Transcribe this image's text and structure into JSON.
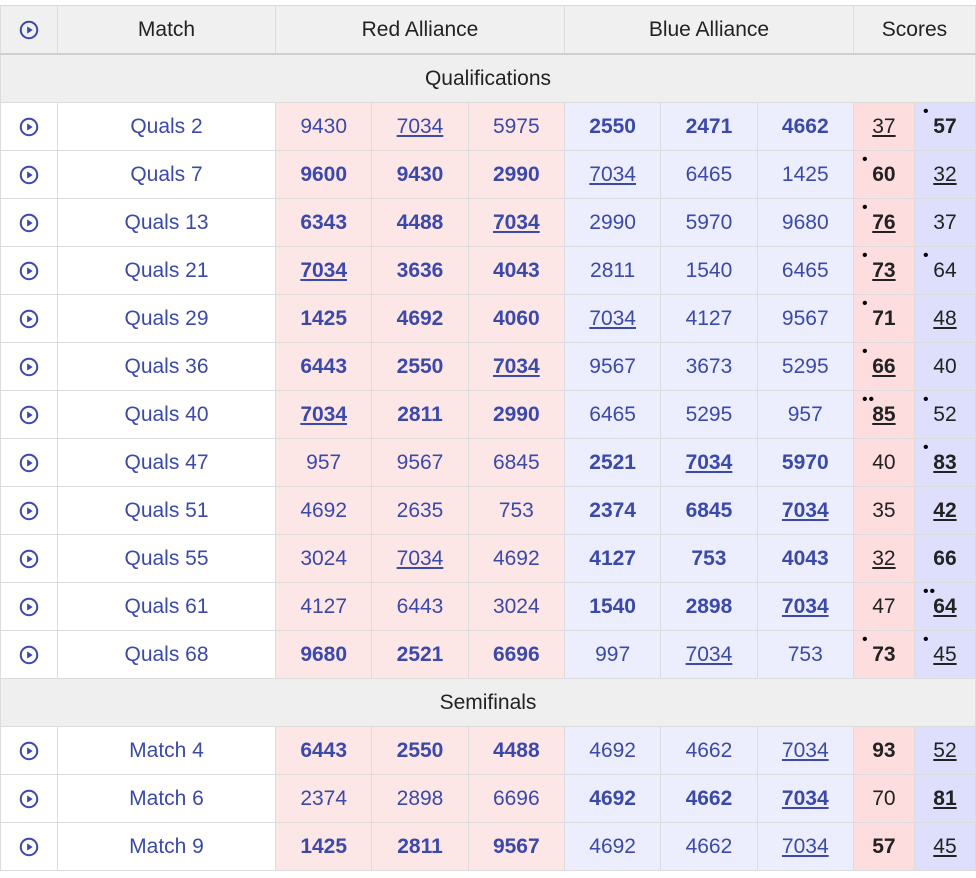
{
  "header": {
    "play_icon": "play-circle-icon",
    "match": "Match",
    "red": "Red Alliance",
    "blue": "Blue Alliance",
    "scores": "Scores"
  },
  "colors": {
    "accent": "#3b49a8",
    "red_bg": "#fde6e6",
    "blue_bg": "#ecedfd",
    "red_score_bg": "#fddddd",
    "blue_score_bg": "#dddffd"
  },
  "sections": [
    {
      "title": "Qualifications",
      "matches": [
        {
          "name": "Quals 2",
          "red": [
            "9430",
            "7034",
            "5975"
          ],
          "blue": [
            "2550",
            "2471",
            "4662"
          ],
          "red_score": "37",
          "blue_score": "57",
          "winner": "blue",
          "red_dots": "",
          "blue_dots": "•",
          "red_score_ul": true,
          "blue_score_ul": false
        },
        {
          "name": "Quals 7",
          "red": [
            "9600",
            "9430",
            "2990"
          ],
          "blue": [
            "7034",
            "6465",
            "1425"
          ],
          "red_score": "60",
          "blue_score": "32",
          "winner": "red",
          "red_dots": "•",
          "blue_dots": "",
          "red_score_ul": false,
          "blue_score_ul": true
        },
        {
          "name": "Quals 13",
          "red": [
            "6343",
            "4488",
            "7034"
          ],
          "blue": [
            "2990",
            "5970",
            "9680"
          ],
          "red_score": "76",
          "blue_score": "37",
          "winner": "red",
          "red_dots": "•",
          "blue_dots": "",
          "red_score_ul": true,
          "blue_score_ul": false
        },
        {
          "name": "Quals 21",
          "red": [
            "7034",
            "3636",
            "4043"
          ],
          "blue": [
            "2811",
            "1540",
            "6465"
          ],
          "red_score": "73",
          "blue_score": "64",
          "winner": "red",
          "red_dots": "•",
          "blue_dots": "•",
          "red_score_ul": true,
          "blue_score_ul": false
        },
        {
          "name": "Quals 29",
          "red": [
            "1425",
            "4692",
            "4060"
          ],
          "blue": [
            "7034",
            "4127",
            "9567"
          ],
          "red_score": "71",
          "blue_score": "48",
          "winner": "red",
          "red_dots": "•",
          "blue_dots": "",
          "red_score_ul": false,
          "blue_score_ul": true
        },
        {
          "name": "Quals 36",
          "red": [
            "6443",
            "2550",
            "7034"
          ],
          "blue": [
            "9567",
            "3673",
            "5295"
          ],
          "red_score": "66",
          "blue_score": "40",
          "winner": "red",
          "red_dots": "•",
          "blue_dots": "",
          "red_score_ul": true,
          "blue_score_ul": false
        },
        {
          "name": "Quals 40",
          "red": [
            "7034",
            "2811",
            "2990"
          ],
          "blue": [
            "6465",
            "5295",
            "957"
          ],
          "red_score": "85",
          "blue_score": "52",
          "winner": "red",
          "red_dots": "••",
          "blue_dots": "•",
          "red_score_ul": true,
          "blue_score_ul": false
        },
        {
          "name": "Quals 47",
          "red": [
            "957",
            "9567",
            "6845"
          ],
          "blue": [
            "2521",
            "7034",
            "5970"
          ],
          "red_score": "40",
          "blue_score": "83",
          "winner": "blue",
          "red_dots": "",
          "blue_dots": "•",
          "red_score_ul": false,
          "blue_score_ul": true
        },
        {
          "name": "Quals 51",
          "red": [
            "4692",
            "2635",
            "753"
          ],
          "blue": [
            "2374",
            "6845",
            "7034"
          ],
          "red_score": "35",
          "blue_score": "42",
          "winner": "blue",
          "red_dots": "",
          "blue_dots": "",
          "red_score_ul": false,
          "blue_score_ul": true
        },
        {
          "name": "Quals 55",
          "red": [
            "3024",
            "7034",
            "4692"
          ],
          "blue": [
            "4127",
            "753",
            "4043"
          ],
          "red_score": "32",
          "blue_score": "66",
          "winner": "blue",
          "red_dots": "",
          "blue_dots": "",
          "red_score_ul": true,
          "blue_score_ul": false
        },
        {
          "name": "Quals 61",
          "red": [
            "4127",
            "6443",
            "3024"
          ],
          "blue": [
            "1540",
            "2898",
            "7034"
          ],
          "red_score": "47",
          "blue_score": "64",
          "winner": "blue",
          "red_dots": "",
          "blue_dots": "••",
          "red_score_ul": false,
          "blue_score_ul": true
        },
        {
          "name": "Quals 68",
          "red": [
            "9680",
            "2521",
            "6696"
          ],
          "blue": [
            "997",
            "7034",
            "753"
          ],
          "red_score": "73",
          "blue_score": "45",
          "winner": "red",
          "red_dots": "•",
          "blue_dots": "•",
          "red_score_ul": false,
          "blue_score_ul": true
        }
      ]
    },
    {
      "title": "Semifinals",
      "matches": [
        {
          "name": "Match 4",
          "red": [
            "6443",
            "2550",
            "4488"
          ],
          "blue": [
            "4692",
            "4662",
            "7034"
          ],
          "red_score": "93",
          "blue_score": "52",
          "winner": "red",
          "red_dots": "",
          "blue_dots": "",
          "red_score_ul": false,
          "blue_score_ul": true
        },
        {
          "name": "Match 6",
          "red": [
            "2374",
            "2898",
            "6696"
          ],
          "blue": [
            "4692",
            "4662",
            "7034"
          ],
          "red_score": "70",
          "blue_score": "81",
          "winner": "blue",
          "red_dots": "",
          "blue_dots": "",
          "red_score_ul": false,
          "blue_score_ul": true
        },
        {
          "name": "Match 9",
          "red": [
            "1425",
            "2811",
            "9567"
          ],
          "blue": [
            "4692",
            "4662",
            "7034"
          ],
          "red_score": "57",
          "blue_score": "45",
          "winner": "red",
          "red_dots": "",
          "blue_dots": "",
          "red_score_ul": false,
          "blue_score_ul": true
        }
      ]
    }
  ],
  "highlight_team": "7034"
}
